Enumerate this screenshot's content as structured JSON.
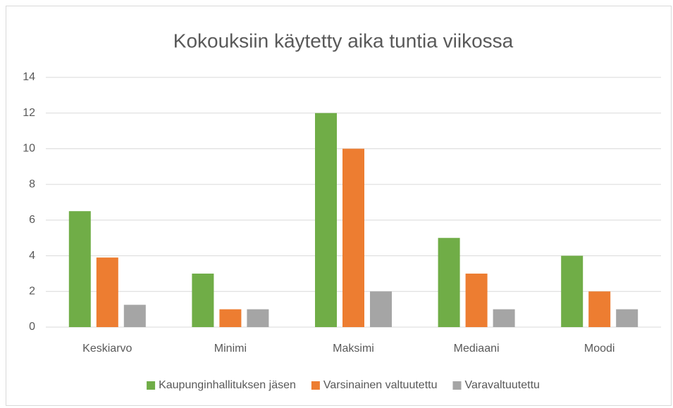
{
  "chart_data": {
    "type": "bar",
    "title": "Kokouksiin käytetty aika tuntia viikossa",
    "categories": [
      "Keskiarvo",
      "Minimi",
      "Maksimi",
      "Mediaani",
      "Moodi"
    ],
    "series": [
      {
        "name": "Kaupunginhallituksen jäsen",
        "color": "#70ad47",
        "values": [
          6.5,
          3,
          12,
          5,
          4
        ]
      },
      {
        "name": "Varsinainen valtuutettu",
        "color": "#ed7d31",
        "values": [
          3.9,
          1,
          10,
          3,
          2
        ]
      },
      {
        "name": "Varavaltuutettu",
        "color": "#a5a5a5",
        "values": [
          1.25,
          1,
          2,
          1,
          1
        ]
      }
    ],
    "ylim": [
      0,
      14
    ],
    "yticks": [
      0,
      2,
      4,
      6,
      8,
      10,
      12,
      14
    ],
    "grid": true,
    "legend": "bottom"
  }
}
